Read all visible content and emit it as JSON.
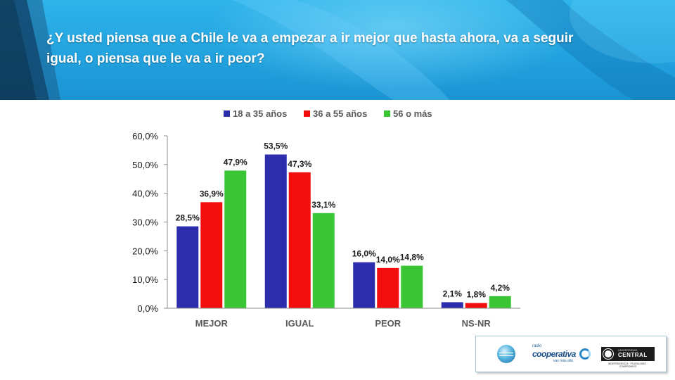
{
  "header": {
    "question": "¿Y usted piensa que a Chile le va a empezar a ir mejor que hasta ahora, va a seguir igual, o piensa que le va a ir peor?"
  },
  "chart_data": {
    "type": "bar",
    "categories": [
      "MEJOR",
      "IGUAL",
      "PEOR",
      "NS-NR"
    ],
    "series": [
      {
        "name": "18 a 35 años",
        "color": "#2b2dac",
        "values": [
          28.5,
          53.5,
          16.0,
          2.1
        ],
        "labels": [
          "28,5%",
          "53,5%",
          "16,0%",
          "2,1%"
        ]
      },
      {
        "name": "36 a 55 años",
        "color": "#f30d0d",
        "values": [
          36.9,
          47.3,
          14.0,
          1.8
        ],
        "labels": [
          "36,9%",
          "47,3%",
          "14,0%",
          "1,8%"
        ]
      },
      {
        "name": "56 o más",
        "color": "#39c534",
        "values": [
          47.9,
          33.1,
          14.8,
          4.2
        ],
        "labels": [
          "47,9%",
          "33,1%",
          "14,8%",
          "4,2%"
        ]
      }
    ],
    "y_ticks": [
      0,
      10,
      20,
      30,
      40,
      50,
      60
    ],
    "y_tick_labels": [
      "0,0%",
      "10,0%",
      "20,0%",
      "30,0%",
      "40,0%",
      "50,0%",
      "60,0%"
    ],
    "ylim": [
      0,
      60
    ],
    "grid": false,
    "legend_position": "top"
  },
  "logos": {
    "cooperativa_small": "radio",
    "cooperativa_name": "cooperativa",
    "cooperativa_tag": "vas más allá",
    "ucentral_small": "UNIVERSIDAD",
    "ucentral_name": "CENTRAL",
    "ucentral_sub": "INDEPENDENCIA · PLURALISMO · COMPROMISO"
  }
}
